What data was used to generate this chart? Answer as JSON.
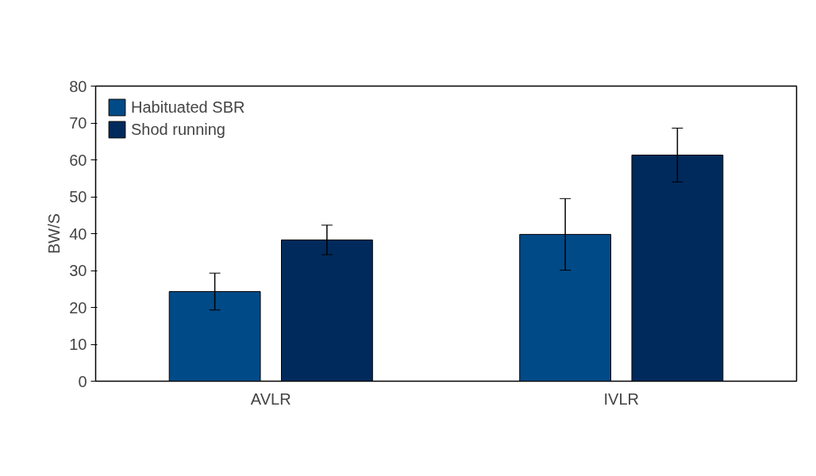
{
  "chart_data": {
    "type": "bar",
    "ylabel": "BW/S",
    "categories": [
      "AVLR",
      "IVLR"
    ],
    "series": [
      {
        "name": "Habituated SBR",
        "color": "#004a87",
        "values": [
          24.3,
          39.8
        ],
        "errors": [
          5,
          9.7
        ]
      },
      {
        "name": "Shod running",
        "color": "#002a5c",
        "values": [
          38.3,
          61.3
        ],
        "errors": [
          4,
          7.3
        ]
      }
    ],
    "ylim": [
      0,
      80
    ],
    "yticks": [
      0,
      10,
      20,
      30,
      40,
      50,
      60,
      70,
      80
    ],
    "grid": false,
    "legend": "top left"
  }
}
